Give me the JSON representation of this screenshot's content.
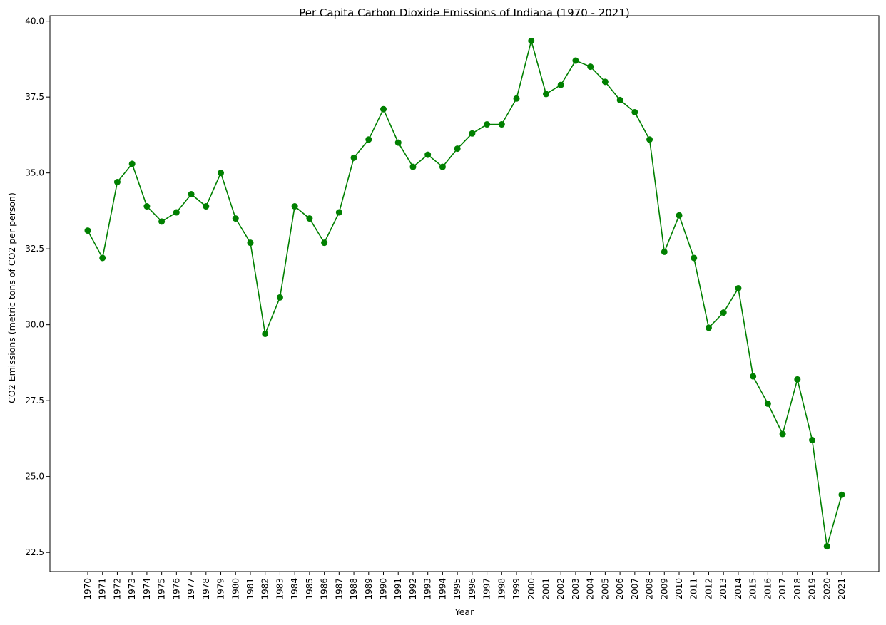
{
  "chart_data": {
    "type": "line",
    "title": "Per Capita Carbon Dioxide Emissions of Indiana (1970 - 2021)",
    "xlabel": "Year",
    "ylabel": "CO2 Emissions (metric tons of CO2 per person)",
    "x": [
      "1970",
      "1971",
      "1972",
      "1973",
      "1974",
      "1975",
      "1976",
      "1977",
      "1978",
      "1979",
      "1980",
      "1981",
      "1982",
      "1983",
      "1984",
      "1985",
      "1986",
      "1987",
      "1988",
      "1989",
      "1990",
      "1991",
      "1992",
      "1993",
      "1994",
      "1995",
      "1996",
      "1997",
      "1998",
      "1999",
      "2000",
      "2001",
      "2002",
      "2003",
      "2004",
      "2005",
      "2006",
      "2007",
      "2008",
      "2009",
      "2010",
      "2011",
      "2012",
      "2013",
      "2014",
      "2015",
      "2016",
      "2017",
      "2018",
      "2019",
      "2020",
      "2021"
    ],
    "series": [
      {
        "values": [
          33.1,
          32.2,
          34.7,
          35.3,
          33.9,
          33.4,
          33.7,
          34.3,
          33.9,
          35.0,
          33.5,
          32.7,
          29.7,
          30.9,
          33.9,
          33.5,
          32.7,
          33.7,
          35.5,
          36.1,
          37.1,
          36.0,
          35.2,
          35.6,
          35.2,
          35.8,
          36.3,
          36.6,
          36.6,
          37.45,
          39.35,
          37.6,
          37.9,
          38.7,
          38.5,
          38.0,
          37.4,
          37.0,
          36.1,
          32.4,
          33.6,
          32.2,
          29.9,
          30.4,
          31.2,
          28.3,
          27.4,
          26.4,
          28.2,
          26.2,
          22.7,
          24.4
        ],
        "color": "#008000",
        "marker": "circle"
      }
    ],
    "yticks": [
      "22.5",
      "25.0",
      "27.5",
      "30.0",
      "32.5",
      "35.0",
      "37.5",
      "40.0"
    ],
    "ytick_values": [
      22.5,
      25.0,
      27.5,
      30.0,
      32.5,
      35.0,
      37.5,
      40.0
    ],
    "ylim": [
      21.87,
      40.18
    ],
    "grid": false,
    "legend": "none"
  }
}
